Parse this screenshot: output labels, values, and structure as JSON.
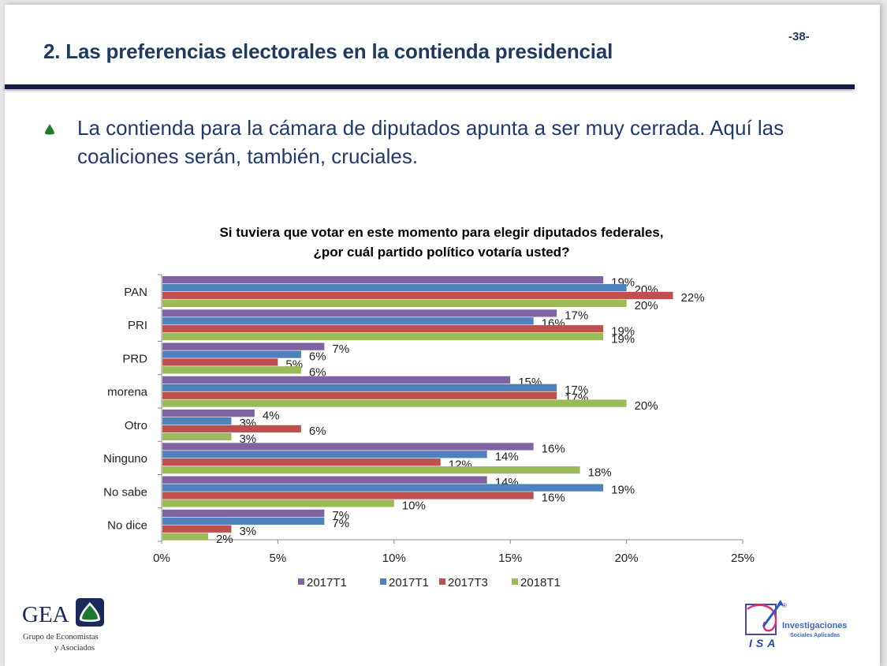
{
  "header": {
    "title": "2. Las preferencias electorales en la contienda presidencial",
    "page_number": "-38-"
  },
  "bullet": {
    "icon": "green-triangle-bullet-icon",
    "text": "La contienda para la cámara de diputados apunta a ser muy cerrada. Aquí las coaliciones serán, también, cruciales."
  },
  "chart_data": {
    "type": "bar",
    "orientation": "horizontal",
    "title": "Si tuviera que votar en este momento para elegir diputados federales, ¿por cuál partido político votaría usted?",
    "title_lines": [
      "Si tuviera que votar en este momento para elegir diputados federales,",
      "¿por cuál partido político votaría usted?"
    ],
    "categories": [
      "PAN",
      "PRI",
      "PRD",
      "morena",
      "Otro",
      "Ninguno",
      "No sabe",
      "No dice"
    ],
    "series": [
      {
        "name": "2017T1",
        "color": "#8064a2",
        "values": [
          19,
          17,
          7,
          15,
          4,
          16,
          14,
          7
        ]
      },
      {
        "name": "2017T1",
        "color": "#4f81bd",
        "values": [
          20,
          16,
          6,
          17,
          3,
          14,
          19,
          7
        ]
      },
      {
        "name": "2017T3",
        "color": "#c0504d",
        "values": [
          22,
          19,
          5,
          17,
          6,
          12,
          16,
          3
        ]
      },
      {
        "name": "2018T1",
        "color": "#9bbb59",
        "values": [
          20,
          19,
          6,
          20,
          3,
          18,
          10,
          2
        ]
      }
    ],
    "value_suffix": "%",
    "xlabel": "",
    "ylabel": "",
    "xlim": [
      0,
      25
    ],
    "x_ticks": [
      "0%",
      "5%",
      "10%",
      "15%",
      "20%",
      "25%"
    ],
    "grid": false,
    "legend_position": "bottom"
  },
  "footer": {
    "left_logo": {
      "name": "GEA",
      "line1": "Grupo de Economistas",
      "line2": "y Asociados"
    },
    "right_logo": {
      "name": "ISA",
      "registered": "®",
      "line1": "Investigaciones",
      "line2": "Sociales Aplicadas"
    }
  }
}
